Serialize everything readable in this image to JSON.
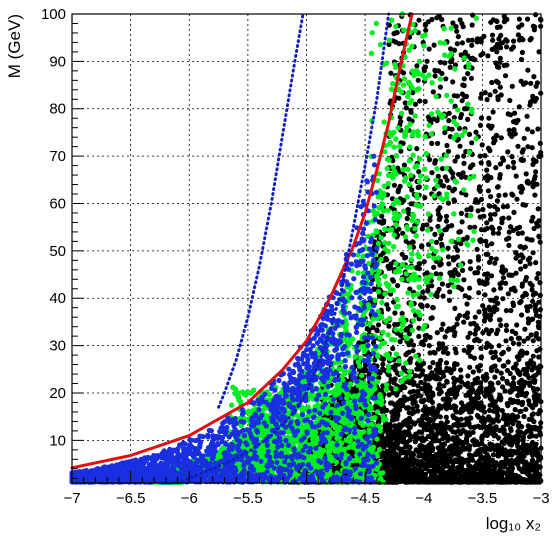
{
  "chart_data": {
    "type": "scatter",
    "title": "",
    "xlabel": "log₁₀ x₂",
    "ylabel": "M (GeV)",
    "xlim": [
      -7,
      -3
    ],
    "ylim": [
      1,
      100
    ],
    "grid": true,
    "legend": "none",
    "x_ticks": [
      -7,
      -6.5,
      -6,
      -5.5,
      -5,
      -4.5,
      -4,
      -3.5,
      -3
    ],
    "x_tick_labels": [
      "−7",
      "−6.5",
      "−6",
      "−5.5",
      "−5",
      "−4.5",
      "−4",
      "−3.5",
      "−3"
    ],
    "y_ticks": [
      10,
      20,
      30,
      40,
      50,
      60,
      70,
      80,
      90,
      100
    ],
    "y_tick_labels": [
      "10",
      "20",
      "30",
      "40",
      "50",
      "60",
      "70",
      "80",
      "90",
      "100"
    ],
    "series": [
      {
        "kind": "scatter",
        "color": "#000000",
        "region": "dense black points filling log10 x2 from about -5.1 to -3, densest at low M and extending to M=100 for log10 x2 > -4.3",
        "points": [
          [
            -4.9,
            3
          ],
          [
            -4.8,
            6
          ],
          [
            -4.7,
            9
          ],
          [
            -4.6,
            12
          ],
          [
            -4.5,
            15
          ],
          [
            -4.45,
            22
          ],
          [
            -4.3,
            28
          ],
          [
            -4.2,
            35
          ],
          [
            -4.1,
            45
          ],
          [
            -4.0,
            55
          ],
          [
            -3.9,
            65
          ],
          [
            -3.8,
            75
          ],
          [
            -3.7,
            85
          ],
          [
            -3.6,
            95
          ],
          [
            -3.5,
            90
          ],
          [
            -3.4,
            70
          ],
          [
            -3.3,
            60
          ],
          [
            -3.2,
            50
          ],
          [
            -3.1,
            40
          ],
          [
            -3.05,
            30
          ],
          [
            -3.5,
            20
          ],
          [
            -3.8,
            10
          ],
          [
            -4.2,
            5
          ],
          [
            -4.0,
            2
          ],
          [
            -3.6,
            3
          ],
          [
            -3.3,
            8
          ],
          [
            -3.1,
            15
          ],
          [
            -3.9,
            25
          ],
          [
            -3.7,
            42
          ],
          [
            -3.5,
            55
          ]
        ]
      },
      {
        "kind": "scatter",
        "color": "#00ee22",
        "region": "green points from log10 x2 about -6.2 to -3.5, forming a diagonal band rising from M~5 at -6 to M~100 at -4.1",
        "points": [
          [
            -6.0,
            3
          ],
          [
            -5.8,
            4
          ],
          [
            -5.6,
            5
          ],
          [
            -5.4,
            7
          ],
          [
            -5.2,
            10
          ],
          [
            -5.0,
            12
          ],
          [
            -4.9,
            18
          ],
          [
            -4.8,
            22
          ],
          [
            -4.7,
            26
          ],
          [
            -4.6,
            30
          ],
          [
            -4.5,
            35
          ],
          [
            -4.4,
            45
          ],
          [
            -4.3,
            55
          ],
          [
            -4.2,
            70
          ],
          [
            -4.1,
            85
          ],
          [
            -4.0,
            95
          ],
          [
            -3.8,
            100
          ],
          [
            -4.4,
            60
          ],
          [
            -4.5,
            40
          ],
          [
            -5.1,
            8
          ],
          [
            -5.3,
            6
          ],
          [
            -4.8,
            15
          ],
          [
            -4.6,
            20
          ],
          [
            -3.9,
            40
          ]
        ]
      },
      {
        "kind": "scatter",
        "color": "#1a2fe0",
        "region": "blue points from log10 x2 about -7 to -4.4, a band starting near M~3 at -7 and rising to M~75 at -4.4",
        "points": [
          [
            -7.0,
            3
          ],
          [
            -6.8,
            4
          ],
          [
            -6.6,
            5
          ],
          [
            -6.4,
            6
          ],
          [
            -6.2,
            7
          ],
          [
            -6.0,
            8
          ],
          [
            -5.8,
            10
          ],
          [
            -5.6,
            12
          ],
          [
            -5.4,
            15
          ],
          [
            -5.2,
            20
          ],
          [
            -5.0,
            25
          ],
          [
            -4.8,
            30
          ],
          [
            -4.7,
            40
          ],
          [
            -4.6,
            50
          ],
          [
            -4.5,
            60
          ],
          [
            -4.45,
            70
          ],
          [
            -4.4,
            77
          ],
          [
            -5.9,
            6
          ],
          [
            -5.5,
            9
          ],
          [
            -5.1,
            13
          ]
        ]
      },
      {
        "kind": "line",
        "style": "solid",
        "color": "#e01010",
        "points": [
          [
            -7.0,
            4.2
          ],
          [
            -6.5,
            6.8
          ],
          [
            -6.0,
            11
          ],
          [
            -5.5,
            18
          ],
          [
            -5.2,
            25
          ],
          [
            -5.0,
            31
          ],
          [
            -4.8,
            40
          ],
          [
            -4.6,
            51
          ],
          [
            -4.5,
            58
          ],
          [
            -4.4,
            67
          ],
          [
            -4.3,
            77
          ],
          [
            -4.2,
            89
          ],
          [
            -4.1,
            100
          ]
        ]
      },
      {
        "kind": "line",
        "style": "dotted",
        "color": "#1020c0",
        "points": [
          [
            -5.75,
            17
          ],
          [
            -5.7,
            20
          ],
          [
            -5.6,
            27
          ],
          [
            -5.5,
            36
          ],
          [
            -5.4,
            47
          ],
          [
            -5.3,
            60
          ],
          [
            -5.2,
            75
          ],
          [
            -5.1,
            90
          ],
          [
            -5.03,
            100
          ]
        ]
      },
      {
        "kind": "line",
        "style": "dotted",
        "color": "#1020c0",
        "points": [
          [
            -6.1,
            1
          ],
          [
            -5.9,
            3
          ],
          [
            -5.7,
            5
          ],
          [
            -5.5,
            7.5
          ],
          [
            -5.3,
            11
          ],
          [
            -5.1,
            16
          ],
          [
            -5.0,
            20
          ],
          [
            -4.9,
            26
          ],
          [
            -4.8,
            33
          ],
          [
            -4.7,
            42
          ],
          [
            -4.6,
            55
          ],
          [
            -4.5,
            68
          ],
          [
            -4.4,
            82
          ],
          [
            -4.3,
            100
          ]
        ]
      }
    ]
  }
}
